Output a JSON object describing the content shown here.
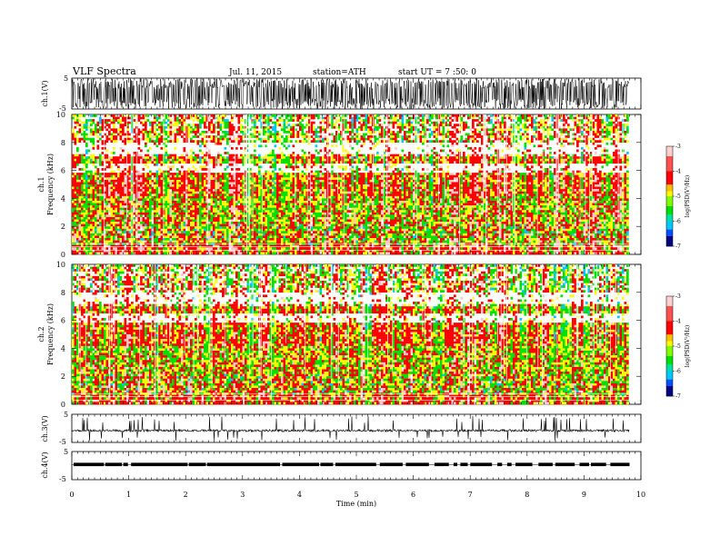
{
  "header": {
    "title": "VLF Spectra",
    "date": "Jul. 11, 2015",
    "station": "station=ATH",
    "start": "start UT = 7 :50: 0"
  },
  "chart_data": [
    {
      "id": "ch1-waveform",
      "type": "line",
      "ylabel": "ch.1(V)",
      "ylim": [
        -5,
        5
      ],
      "yticks": [
        "5",
        "-5"
      ],
      "xlim": [
        0,
        10
      ],
      "data_extent_min": 9.8,
      "description_values": {
        "amplitude_peak": 5,
        "color": "#000000"
      }
    },
    {
      "id": "ch1-spectrogram",
      "type": "heatmap",
      "ylabel_line1": "ch.1",
      "ylabel_line2": "Frequency (kHz)",
      "ylim": [
        0,
        10
      ],
      "yticks": [
        "0",
        "2",
        "4",
        "6",
        "8",
        "10"
      ],
      "xlim": [
        0,
        10
      ],
      "data_extent_min": 9.8,
      "colorbar": {
        "label": "log(PSD(V²/Hz)",
        "range": [
          -7,
          -3
        ],
        "ticks": [
          "-3",
          "-4",
          "-5",
          "-6",
          "-7"
        ]
      }
    },
    {
      "id": "ch2-spectrogram",
      "type": "heatmap",
      "ylabel_line1": "ch.2",
      "ylabel_line2": "Frequency (kHz)",
      "ylim": [
        0,
        10
      ],
      "yticks": [
        "0",
        "2",
        "4",
        "6",
        "8",
        "10"
      ],
      "xlim": [
        0,
        10
      ],
      "data_extent_min": 9.8,
      "colorbar": {
        "label": "log(PSD(V²/Hz)",
        "range": [
          -7,
          -3
        ],
        "ticks": [
          "-3",
          "-4",
          "-5",
          "-6",
          "-7"
        ]
      }
    },
    {
      "id": "ch3-waveform",
      "type": "line",
      "ylabel": "ch.3(V)",
      "ylim": [
        -5,
        5
      ],
      "yticks": [
        "5",
        "-5"
      ],
      "xlim": [
        0,
        10
      ],
      "data_extent_min": 9.8
    },
    {
      "id": "ch4-waveform",
      "type": "line",
      "ylabel": "ch.4(V)",
      "ylim": [
        -5,
        5
      ],
      "yticks": [
        "5",
        "-5"
      ],
      "xlim": [
        0,
        10
      ],
      "data_extent_min": 9.8
    }
  ],
  "xaxis": {
    "label": "Time (min)",
    "ticks": [
      "0",
      "1",
      "2",
      "3",
      "4",
      "5",
      "6",
      "7",
      "8",
      "9",
      "10"
    ]
  },
  "colors": {
    "spec_low": "#0000a0",
    "spec_mid_low": "#00c8ff",
    "spec_mid": "#00e000",
    "spec_mid_high": "#ffff00",
    "spec_high": "#ff0000",
    "spec_top": "#ffc8c8"
  }
}
